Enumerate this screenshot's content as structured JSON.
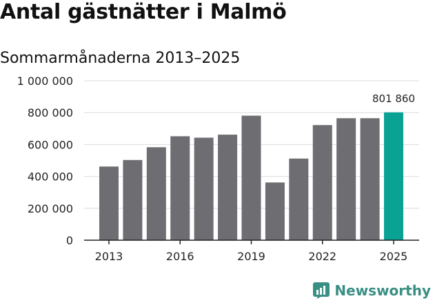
{
  "title": "Antal gästnätter i Malmö",
  "subtitle": "Sommarmånaderna 2013–2025",
  "brand": "Newsworthy",
  "colors": {
    "bar": "#6e6d72",
    "highlight": "#0aa294",
    "grid": "#dcdcdc",
    "brand": "#3a8f84"
  },
  "chart_data": {
    "type": "bar",
    "title": "Antal gästnätter i Malmö",
    "subtitle": "Sommarmånaderna 2013–2025",
    "categories": [
      "2013",
      "2014",
      "2015",
      "2016",
      "2017",
      "2018",
      "2019",
      "2020",
      "2021",
      "2022",
      "2023",
      "2024",
      "2025"
    ],
    "values": [
      462000,
      503000,
      583000,
      652000,
      643000,
      662000,
      781000,
      362000,
      512000,
      722000,
      765000,
      765000,
      801860
    ],
    "highlight_index": 12,
    "highlight_label": "801 860",
    "ylim": [
      0,
      1000000
    ],
    "yticks": [
      0,
      200000,
      400000,
      600000,
      800000,
      1000000
    ],
    "ytick_labels": [
      "0",
      "200 000",
      "400 000",
      "600 000",
      "800 000",
      "1 000 000"
    ],
    "xtick_labels": [
      "2013",
      "2016",
      "2019",
      "2022",
      "2025"
    ],
    "xtick_indices": [
      0,
      3,
      6,
      9,
      12
    ],
    "grid": true,
    "legend": "none"
  }
}
